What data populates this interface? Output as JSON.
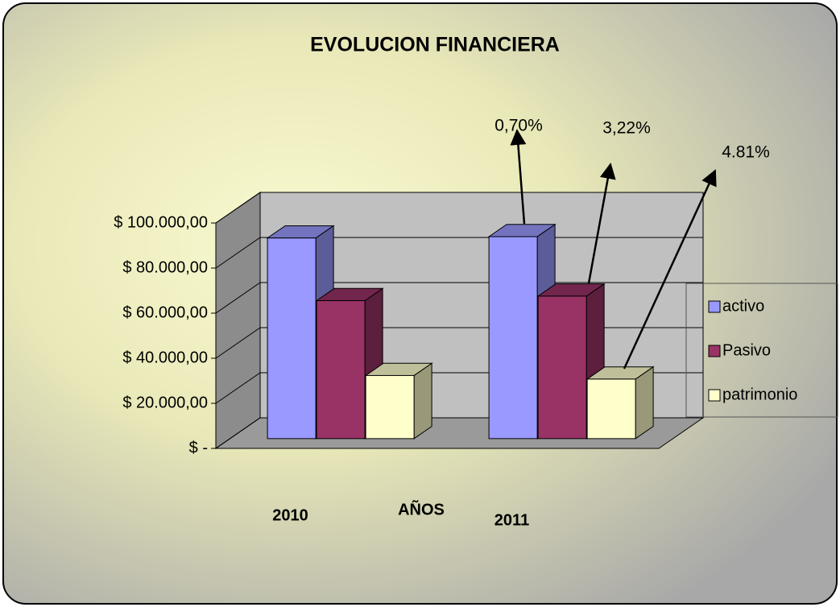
{
  "chart_data": {
    "type": "bar3d",
    "title": "EVOLUCION FINANCIERA",
    "x_label": "AÑOS",
    "categories": [
      "2010",
      "2011"
    ],
    "series": [
      {
        "name": "activo",
        "color": "#9999ff",
        "values": [
          89000,
          89600
        ]
      },
      {
        "name": "Pasivo",
        "color": "#993366",
        "values": [
          61200,
          63200
        ]
      },
      {
        "name": "patrimonio",
        "color": "#ffffcc",
        "values": [
          28000,
          26400
        ]
      }
    ],
    "ylim": [
      0,
      100000
    ],
    "yticks": [
      {
        "value": 0,
        "label": "$ -"
      },
      {
        "value": 20000,
        "label": "$ 20.000,00"
      },
      {
        "value": 40000,
        "label": "$ 40.000,00"
      },
      {
        "value": 60000,
        "label": "$ 60.000,00"
      },
      {
        "value": 80000,
        "label": "$ 80.000,00"
      },
      {
        "value": 100000,
        "label": "$ 100.000,00"
      }
    ],
    "annotations": [
      "0,70%",
      "3,22%",
      "4.81%"
    ],
    "grid": true,
    "legend": "right"
  }
}
